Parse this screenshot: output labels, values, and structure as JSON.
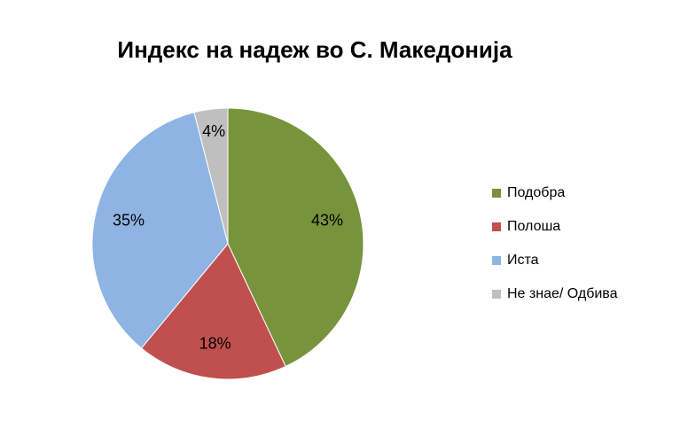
{
  "chart_data": {
    "type": "pie",
    "title": "Индекс на надеж во С. Македонија",
    "categories": [
      "Подобра",
      "Полоша",
      "Иста",
      "Не знае/ Одбива"
    ],
    "values": [
      43,
      18,
      35,
      4
    ],
    "value_labels": [
      "43%",
      "18%",
      "35%",
      "4%"
    ],
    "colors": [
      "#77933c",
      "#c0504d",
      "#8eb4e3",
      "#bfbfbf"
    ],
    "legend": "right"
  }
}
